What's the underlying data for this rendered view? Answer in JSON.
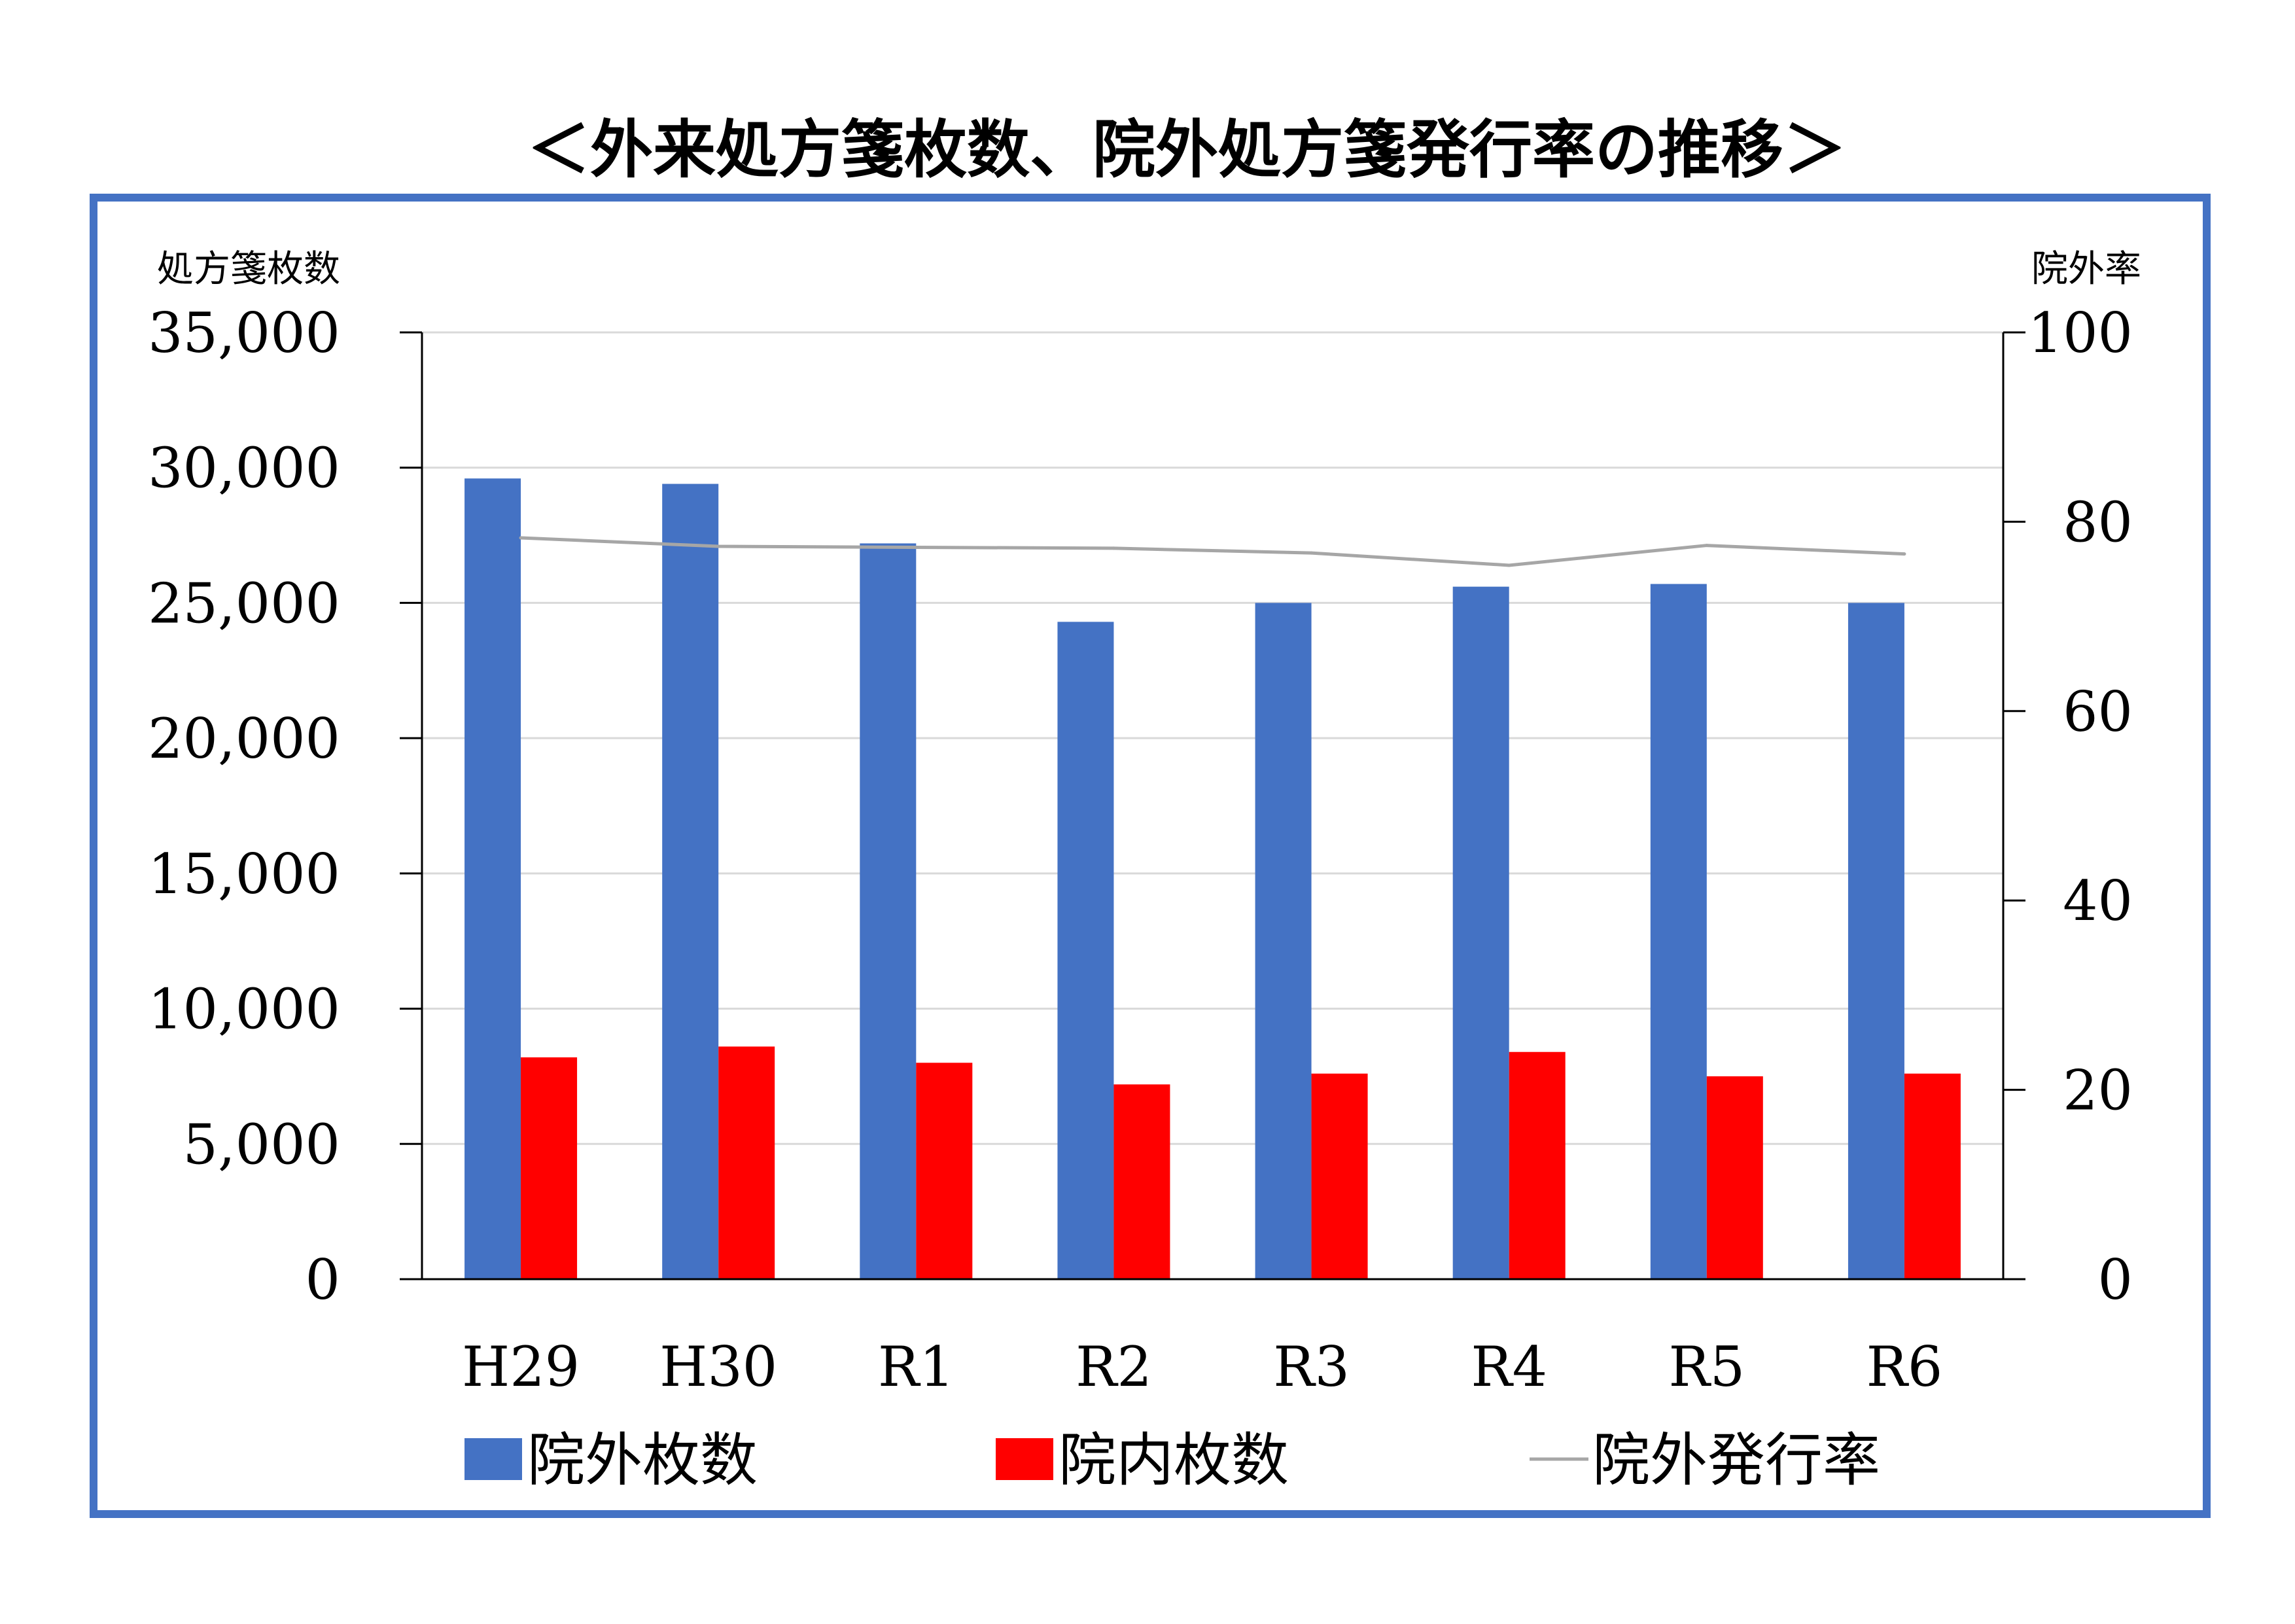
{
  "chart_data": {
    "type": "bar",
    "title": "＜外来処方箋枚数、院外処方箋発行率の推移＞",
    "ylabel": "処方箋枚数",
    "y2label": "院外率",
    "ylim": [
      0,
      35000
    ],
    "y2lim": [
      0,
      100
    ],
    "yticks": [
      "0",
      "5,000",
      "10,000",
      "15,000",
      "20,000",
      "25,000",
      "30,000",
      "35,000"
    ],
    "y2ticks": [
      "0",
      "20",
      "40",
      "60",
      "80",
      "100"
    ],
    "grid": true,
    "categories": [
      "H29",
      "H30",
      "R1",
      "R2",
      "R3",
      "R4",
      "R5",
      "R6"
    ],
    "series": [
      {
        "name": "院外枚数",
        "kind": "bar",
        "axis": "left",
        "color": "#4472C4",
        "values": [
          29600,
          29400,
          27200,
          24300,
          25000,
          25600,
          25700,
          25000
        ]
      },
      {
        "name": "院内枚数",
        "kind": "bar",
        "axis": "left",
        "color": "#FF0000",
        "values": [
          8200,
          8600,
          8000,
          7200,
          7600,
          8400,
          7500,
          7600
        ]
      },
      {
        "name": "院外発行率",
        "kind": "line",
        "axis": "right",
        "color": "#A6A6A6",
        "values": [
          78.3,
          77.4,
          77.3,
          77.2,
          76.7,
          75.4,
          77.5,
          76.6
        ]
      }
    ],
    "legend_position": "bottom"
  },
  "colors": {
    "frame": "#4472C4",
    "grid": "#D9D9D9",
    "axis": "#000000"
  }
}
